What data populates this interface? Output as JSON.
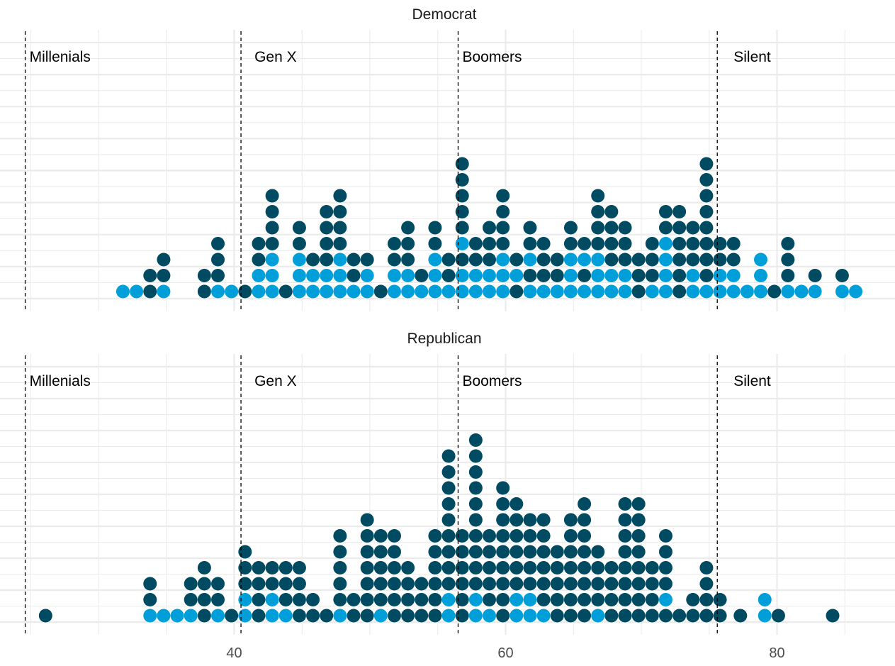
{
  "chart_data": {
    "type": "scatter",
    "subtype": "dot-histogram",
    "grid": true,
    "legend": "none",
    "x_ticks": [
      40,
      60,
      80
    ],
    "xlim": [
      24.5,
      88.3
    ],
    "ylim": [
      0.5,
      10.5
    ],
    "colors": {
      "light": "#009FD9",
      "dark": "#004B61"
    },
    "eras": [
      {
        "label": "Millenials",
        "x": 24.6
      },
      {
        "label": "Gen X",
        "x": 40.5
      },
      {
        "label": "Boomers",
        "x": 56.5
      },
      {
        "label": "Silent",
        "x": 75.6
      }
    ],
    "panels": [
      {
        "title": "Democrat",
        "columns": [
          {
            "x": 31.8,
            "stack": "L"
          },
          {
            "x": 32.8,
            "stack": "L"
          },
          {
            "x": 33.8,
            "stack": "DD"
          },
          {
            "x": 34.8,
            "stack": "LDD"
          },
          {
            "x": 37.8,
            "stack": "DD"
          },
          {
            "x": 38.8,
            "stack": "LDDD"
          },
          {
            "x": 39.8,
            "stack": "L"
          },
          {
            "x": 40.8,
            "stack": "D"
          },
          {
            "x": 41.8,
            "stack": "LLDD"
          },
          {
            "x": 42.8,
            "stack": "LLLDDDD"
          },
          {
            "x": 43.8,
            "stack": "D"
          },
          {
            "x": 44.8,
            "stack": "LLLDD"
          },
          {
            "x": 45.8,
            "stack": "LLD"
          },
          {
            "x": 46.8,
            "stack": "LLDDDD"
          },
          {
            "x": 47.8,
            "stack": "LLLDDDD"
          },
          {
            "x": 48.8,
            "stack": "LDD"
          },
          {
            "x": 49.8,
            "stack": "LLD"
          },
          {
            "x": 50.8,
            "stack": "D"
          },
          {
            "x": 51.8,
            "stack": "LLDD"
          },
          {
            "x": 52.8,
            "stack": "LLDDD"
          },
          {
            "x": 53.8,
            "stack": "LD"
          },
          {
            "x": 54.8,
            "stack": "LLLDD"
          },
          {
            "x": 55.8,
            "stack": "LDD"
          },
          {
            "x": 56.8,
            "stack": "LLDLDDDDD"
          },
          {
            "x": 57.8,
            "stack": "LLDD"
          },
          {
            "x": 58.8,
            "stack": "LLDDD"
          },
          {
            "x": 59.8,
            "stack": "LLLDDDD"
          },
          {
            "x": 60.8,
            "stack": "DLD"
          },
          {
            "x": 61.8,
            "stack": "LDLDD"
          },
          {
            "x": 62.8,
            "stack": "LDDD"
          },
          {
            "x": 63.8,
            "stack": "LDD"
          },
          {
            "x": 64.8,
            "stack": "LLLDD"
          },
          {
            "x": 65.8,
            "stack": "LDLD"
          },
          {
            "x": 66.8,
            "stack": "LLLDDDD"
          },
          {
            "x": 67.8,
            "stack": "LLDDDD"
          },
          {
            "x": 68.8,
            "stack": "LLDDD"
          },
          {
            "x": 69.8,
            "stack": "DDD"
          },
          {
            "x": 70.8,
            "stack": "LDDD"
          },
          {
            "x": 71.8,
            "stack": "LLLLDD"
          },
          {
            "x": 72.8,
            "stack": "DDDDDD"
          },
          {
            "x": 73.8,
            "stack": "LLDDD"
          },
          {
            "x": 74.8,
            "stack": "LDDDDDDDD"
          },
          {
            "x": 75.8,
            "stack": "LLDD"
          },
          {
            "x": 76.8,
            "stack": "LLDD"
          },
          {
            "x": 77.8,
            "stack": "L"
          },
          {
            "x": 78.8,
            "stack": "LLL"
          },
          {
            "x": 79.8,
            "stack": "D"
          },
          {
            "x": 80.8,
            "stack": "LDDD"
          },
          {
            "x": 81.8,
            "stack": "L"
          },
          {
            "x": 82.8,
            "stack": "LD"
          },
          {
            "x": 84.8,
            "stack": "LD"
          },
          {
            "x": 85.8,
            "stack": "L"
          }
        ]
      },
      {
        "title": "Republican",
        "columns": [
          {
            "x": 26.1,
            "stack": "D"
          },
          {
            "x": 33.8,
            "stack": "LDD"
          },
          {
            "x": 34.8,
            "stack": "L"
          },
          {
            "x": 35.8,
            "stack": "L"
          },
          {
            "x": 36.8,
            "stack": "LDD"
          },
          {
            "x": 37.8,
            "stack": "DDDD"
          },
          {
            "x": 38.8,
            "stack": "LDD"
          },
          {
            "x": 39.8,
            "stack": "D"
          },
          {
            "x": 40.8,
            "stack": "LLDDD"
          },
          {
            "x": 41.8,
            "stack": "DDDD"
          },
          {
            "x": 42.8,
            "stack": "LLDD"
          },
          {
            "x": 43.8,
            "stack": "LDDD"
          },
          {
            "x": 44.8,
            "stack": "DDDD"
          },
          {
            "x": 45.8,
            "stack": "DD"
          },
          {
            "x": 46.8,
            "stack": "D"
          },
          {
            "x": 47.8,
            "stack": "LDDDDD"
          },
          {
            "x": 48.8,
            "stack": "DD"
          },
          {
            "x": 49.8,
            "stack": "DDDDDDD"
          },
          {
            "x": 50.8,
            "stack": "LDDDDD"
          },
          {
            "x": 51.8,
            "stack": "DDDDDD"
          },
          {
            "x": 52.8,
            "stack": "DDDD"
          },
          {
            "x": 53.8,
            "stack": "DDD"
          },
          {
            "x": 54.8,
            "stack": "DDDDDD"
          },
          {
            "x": 55.8,
            "stack": "LLDDDDDDDDD"
          },
          {
            "x": 56.8,
            "stack": "DDDDDD"
          },
          {
            "x": 57.8,
            "stack": "LLDDDDDDDDDD"
          },
          {
            "x": 58.8,
            "stack": "LDDDDD"
          },
          {
            "x": 59.8,
            "stack": "DDDDDDDDD"
          },
          {
            "x": 60.8,
            "stack": "LLDDDDDD"
          },
          {
            "x": 61.8,
            "stack": "LLDDDDD"
          },
          {
            "x": 62.8,
            "stack": "LDDDDDD"
          },
          {
            "x": 63.8,
            "stack": "DDDDD"
          },
          {
            "x": 64.8,
            "stack": "DDDDDDD"
          },
          {
            "x": 65.8,
            "stack": "DDDDDDDD"
          },
          {
            "x": 66.8,
            "stack": "LDDDD"
          },
          {
            "x": 67.8,
            "stack": "DDDD"
          },
          {
            "x": 68.8,
            "stack": "DDDDDDDD"
          },
          {
            "x": 69.8,
            "stack": "DDDDDDDD"
          },
          {
            "x": 70.8,
            "stack": "DDDD"
          },
          {
            "x": 71.8,
            "stack": "DLDDDD"
          },
          {
            "x": 72.8,
            "stack": "D"
          },
          {
            "x": 73.8,
            "stack": "DD"
          },
          {
            "x": 74.8,
            "stack": "DDDD"
          },
          {
            "x": 75.8,
            "stack": "DD"
          },
          {
            "x": 77.3,
            "stack": "D"
          },
          {
            "x": 79.1,
            "stack": "LL"
          },
          {
            "x": 80.1,
            "stack": "D"
          },
          {
            "x": 84.1,
            "stack": "D"
          }
        ]
      }
    ]
  }
}
